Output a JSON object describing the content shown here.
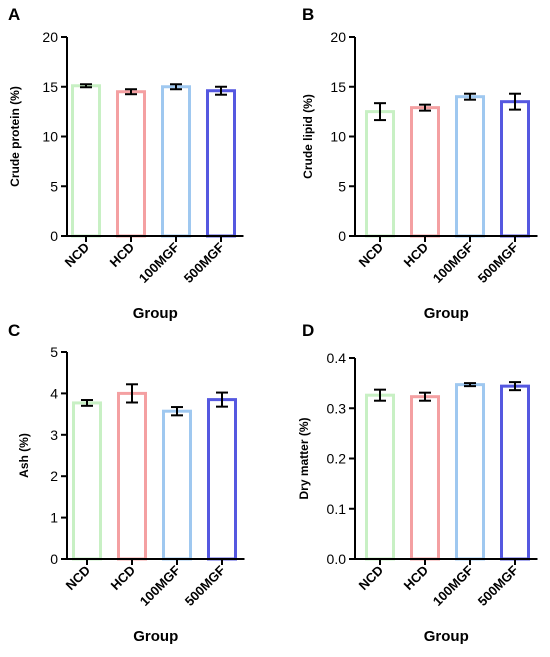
{
  "figure": {
    "colors": {
      "axis": "#000000",
      "error_bar": "#000000",
      "ncd": "#c8f0c4",
      "hcd": "#f4a0a2",
      "mgf100": "#9fc8f0",
      "mgf500": "#5558e0"
    }
  },
  "chart_data": [
    {
      "panel": "A",
      "type": "bar",
      "categories": [
        "NCD",
        "HCD",
        "100MGF",
        "500MGF"
      ],
      "values": [
        15.1,
        14.5,
        15.0,
        14.6
      ],
      "errors": [
        0.15,
        0.25,
        0.25,
        0.4
      ],
      "title": "",
      "xlabel": "Group",
      "ylabel": "Crude protein (%)",
      "ylim": [
        0,
        20
      ],
      "yticks": [
        "0",
        "5",
        "10",
        "15",
        "20"
      ],
      "grid": false
    },
    {
      "panel": "B",
      "type": "bar",
      "categories": [
        "NCD",
        "HCD",
        "100MGF",
        "500MGF"
      ],
      "values": [
        12.5,
        12.9,
        14.0,
        13.5
      ],
      "errors": [
        0.85,
        0.3,
        0.3,
        0.8
      ],
      "title": "",
      "xlabel": "Group",
      "ylabel": "Crude lipid (%)",
      "ylim": [
        0,
        20
      ],
      "yticks": [
        "0",
        "5",
        "10",
        "15",
        "20"
      ],
      "grid": false
    },
    {
      "panel": "C",
      "type": "bar",
      "categories": [
        "NCD",
        "HCD",
        "100MGF",
        "500MGF"
      ],
      "values": [
        3.77,
        4.0,
        3.57,
        3.85
      ],
      "errors": [
        0.07,
        0.22,
        0.1,
        0.17
      ],
      "title": "",
      "xlabel": "Group",
      "ylabel": "Ash (%)",
      "ylim": [
        0,
        5
      ],
      "yticks": [
        "0",
        "1",
        "2",
        "3",
        "4",
        "5"
      ],
      "grid": false
    },
    {
      "panel": "D",
      "type": "bar",
      "categories": [
        "NCD",
        "HCD",
        "100MGF",
        "500MGF"
      ],
      "values": [
        0.326,
        0.323,
        0.347,
        0.344
      ],
      "errors": [
        0.011,
        0.008,
        0.003,
        0.008
      ],
      "title": "",
      "xlabel": "Group",
      "ylabel": "Dry matter (%)",
      "ylim": [
        0,
        0.4
      ],
      "yticks": [
        "0.0",
        "0.1",
        "0.2",
        "0.3",
        "0.4"
      ],
      "grid": false
    }
  ]
}
